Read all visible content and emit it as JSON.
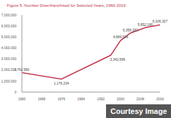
{
  "chart_data": {
    "type": "line",
    "title": "Figure 5. Number Disenfranchised for Selected Years, 1960-2016",
    "x": [
      1960,
      1976,
      1996,
      2000,
      2004,
      2010,
      2016
    ],
    "values": [
      1762582,
      1176234,
      3342586,
      4686539,
      5358282,
      5852180,
      6106327
    ],
    "value_labels": [
      "1,762,582",
      "1,176,234",
      "3,342,586",
      "4,686,539",
      "5,358,282",
      "5,852,180",
      "6,106,327"
    ],
    "data_labels": true,
    "color": "#c2344a",
    "xlim": [
      1960,
      2016
    ],
    "xticks": [
      1960,
      1968,
      1976,
      1984,
      1992,
      2000,
      2008,
      2016
    ],
    "ylim": [
      0,
      7000000
    ],
    "yticks": [
      {
        "value": 0,
        "label": "0"
      },
      {
        "value": 1000000,
        "label": "1,000,000"
      },
      {
        "value": 2000000,
        "label": "2,000,000"
      },
      {
        "value": 3000000,
        "label": "3,000,000"
      },
      {
        "value": 4000000,
        "label": "4,000,000"
      },
      {
        "value": 5000000,
        "label": "5,000,000"
      },
      {
        "value": 6000000,
        "label": "6,000,000"
      },
      {
        "value": 7000000,
        "label": "7,000,000"
      }
    ],
    "grid": false,
    "annotations": [
      "Courtesy Image"
    ]
  }
}
